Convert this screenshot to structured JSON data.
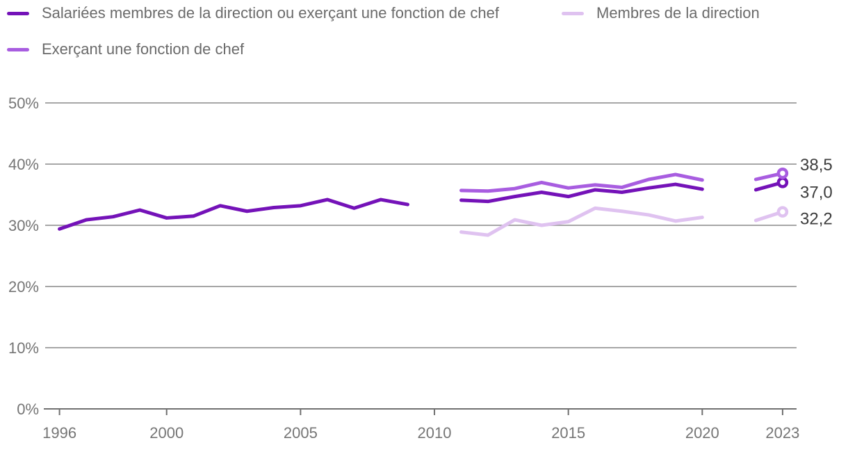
{
  "legend": {
    "items": [
      {
        "label": "Salariées membres de la direction ou exerçant une fonction de chef",
        "color": "#7412b8"
      },
      {
        "label": "Membres de la direction",
        "color": "#dfc2f0"
      },
      {
        "label": "Exerçant une fonction de chef",
        "color": "#a85de0"
      }
    ]
  },
  "chart_data": {
    "type": "line",
    "title": "",
    "xlabel": "",
    "ylabel": "",
    "xlim": [
      1996,
      2023
    ],
    "ylim": [
      0,
      50
    ],
    "grid": "horizontal",
    "legend_position": "top",
    "x_ticks": [
      1996,
      2000,
      2005,
      2010,
      2015,
      2020,
      2023
    ],
    "y_tick_labels": [
      "0%",
      "10%",
      "20%",
      "30%",
      "40%",
      "50%"
    ],
    "y_tick_values": [
      0,
      10,
      20,
      30,
      40,
      50
    ],
    "colors": {
      "axis": "#707070",
      "gridline": "#9a9a9a",
      "tick_label": "#757575",
      "end_label": "#3d3d3d"
    },
    "series": [
      {
        "name": "Salariées membres de la direction ou exerçant une fonction de chef",
        "color": "#7412b8",
        "end_label": "37,0",
        "end_marker": true,
        "segments": [
          {
            "years": [
              1996,
              1997,
              1998,
              1999,
              2000,
              2001,
              2002,
              2003,
              2004,
              2005,
              2006,
              2007,
              2008,
              2009
            ],
            "values": [
              29.4,
              30.9,
              31.4,
              32.5,
              31.2,
              31.5,
              33.2,
              32.3,
              32.9,
              33.2,
              34.2,
              32.8,
              34.2,
              33.4
            ]
          },
          {
            "years": [
              2011,
              2012,
              2013,
              2014,
              2015,
              2016,
              2017,
              2018,
              2019,
              2020
            ],
            "values": [
              34.1,
              33.9,
              34.7,
              35.4,
              34.7,
              35.8,
              35.4,
              36.1,
              36.7,
              35.9
            ]
          },
          {
            "years": [
              2022,
              2023
            ],
            "values": [
              35.8,
              37.0
            ]
          }
        ]
      },
      {
        "name": "Membres de la direction",
        "color": "#dfc2f0",
        "end_label": "32,2",
        "end_marker": true,
        "segments": [
          {
            "years": [
              2011,
              2012,
              2013,
              2014,
              2015,
              2016,
              2017,
              2018,
              2019,
              2020
            ],
            "values": [
              28.9,
              28.4,
              30.9,
              30.0,
              30.6,
              32.8,
              32.3,
              31.7,
              30.7,
              31.3
            ]
          },
          {
            "years": [
              2022,
              2023
            ],
            "values": [
              30.8,
              32.2
            ]
          }
        ]
      },
      {
        "name": "Exerçant une fonction de chef",
        "color": "#a85de0",
        "end_label": "38,5",
        "end_marker": true,
        "segments": [
          {
            "years": [
              2011,
              2012,
              2013,
              2014,
              2015,
              2016,
              2017,
              2018,
              2019,
              2020
            ],
            "values": [
              35.7,
              35.6,
              36.0,
              37.0,
              36.1,
              36.6,
              36.2,
              37.5,
              38.3,
              37.4
            ]
          },
          {
            "years": [
              2022,
              2023
            ],
            "values": [
              37.5,
              38.5
            ]
          }
        ]
      }
    ]
  }
}
